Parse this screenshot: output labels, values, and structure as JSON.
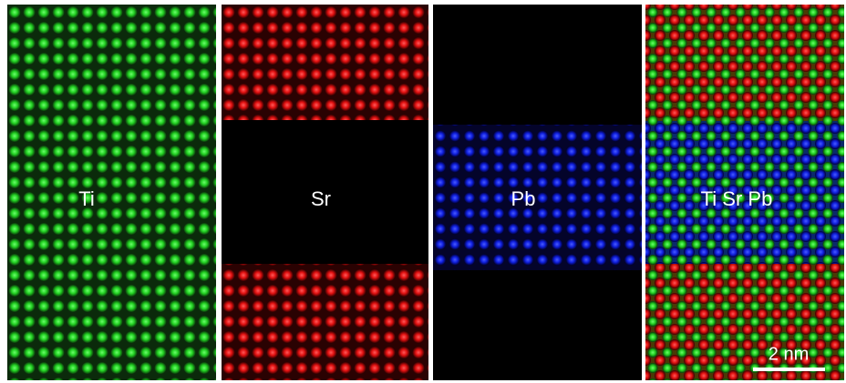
{
  "panels": [
    {
      "label": "Ti"
    },
    {
      "label": "Sr"
    },
    {
      "label": "Pb"
    },
    {
      "label": "Ti Sr Pb"
    }
  ],
  "scale_bar": {
    "label": "2 nm"
  }
}
